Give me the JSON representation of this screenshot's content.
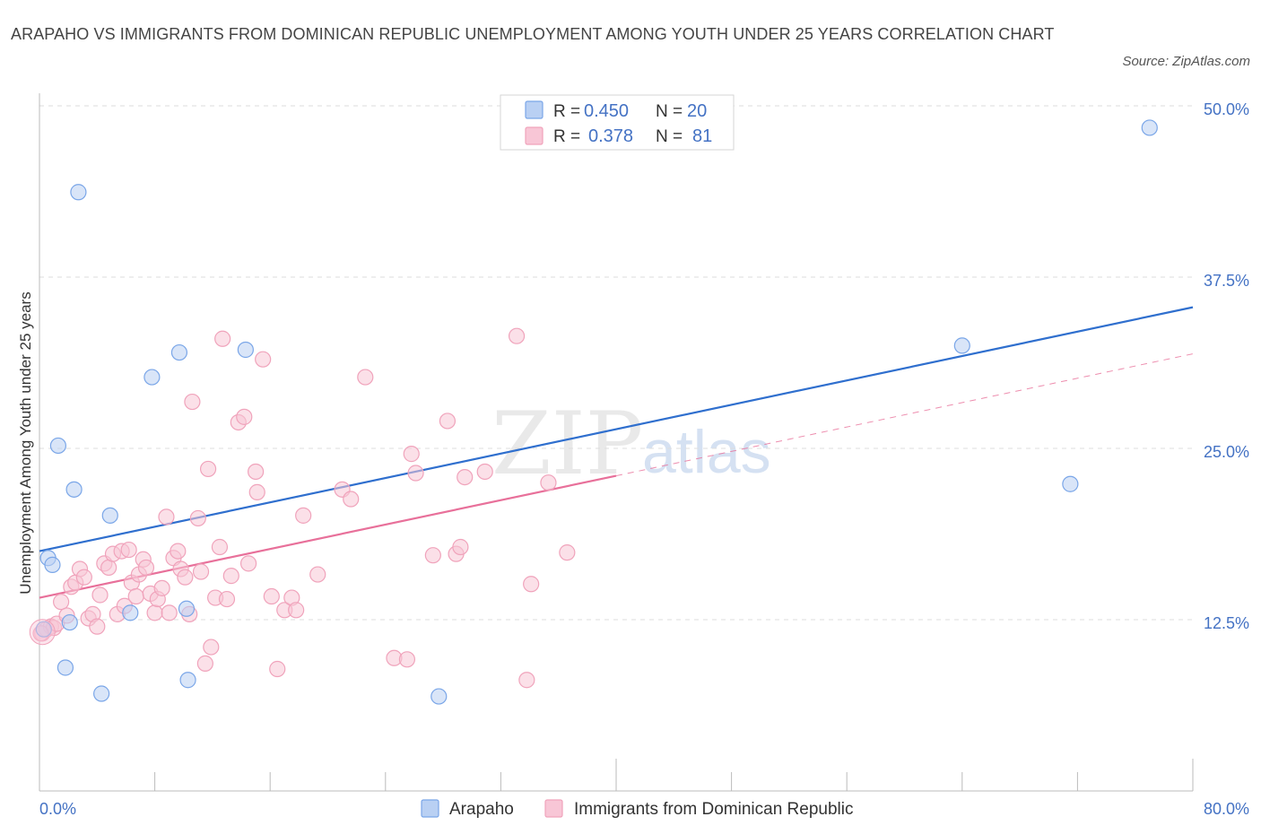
{
  "title": "ARAPAHO VS IMMIGRANTS FROM DOMINICAN REPUBLIC UNEMPLOYMENT AMONG YOUTH UNDER 25 YEARS CORRELATION CHART",
  "source": "Source: ZipAtlas.com",
  "watermark": {
    "zip": "ZIP",
    "atlas": "atlas"
  },
  "legend": {
    "rows": [
      {
        "r_label": "R =",
        "r_value": "0.450",
        "n_label": "N =",
        "n_value": "20"
      },
      {
        "r_label": "R =",
        "r_value": "0.378",
        "n_label": "N =",
        "n_value": "81"
      }
    ]
  },
  "chart_data": {
    "type": "scatter",
    "title": "ARAPAHO VS IMMIGRANTS FROM DOMINICAN REPUBLIC UNEMPLOYMENT AMONG YOUTH UNDER 25 YEARS CORRELATION CHART",
    "xlabel": "",
    "ylabel": "Unemployment Among Youth under 25 years",
    "xlim": [
      0,
      80
    ],
    "ylim": [
      0,
      50
    ],
    "x_tick_labels": [
      {
        "value": 0,
        "label": "0.0%"
      },
      {
        "value": 80,
        "label": "80.0%"
      }
    ],
    "y_tick_labels": [
      {
        "value": 12.5,
        "label": "12.5%"
      },
      {
        "value": 25,
        "label": "25.0%"
      },
      {
        "value": 37.5,
        "label": "37.5%"
      },
      {
        "value": 50,
        "label": "50.0%"
      }
    ],
    "series": [
      {
        "name": "Arapaho",
        "color": "#7aa6e8",
        "fill": "#b9d0f3",
        "line_color": "#2f6fce",
        "r": 0.45,
        "n": 20,
        "trend": {
          "x0": 0,
          "y0": 17.5,
          "x1": 80,
          "y1": 35.3,
          "dashed_from": null
        },
        "points": [
          [
            0.3,
            11.8
          ],
          [
            0.6,
            17.0
          ],
          [
            0.9,
            16.5
          ],
          [
            1.3,
            25.2
          ],
          [
            1.8,
            9.0
          ],
          [
            2.1,
            12.3
          ],
          [
            2.4,
            22.0
          ],
          [
            2.7,
            43.7
          ],
          [
            4.3,
            7.1
          ],
          [
            4.9,
            20.1
          ],
          [
            6.3,
            13.0
          ],
          [
            7.8,
            30.2
          ],
          [
            9.7,
            32.0
          ],
          [
            10.2,
            13.3
          ],
          [
            10.3,
            8.1
          ],
          [
            14.3,
            32.2
          ],
          [
            27.7,
            6.9
          ],
          [
            64.0,
            32.5
          ],
          [
            71.5,
            22.4
          ],
          [
            77.0,
            48.4
          ]
        ]
      },
      {
        "name": "Immigrants from Dominican Republic",
        "color": "#f0a3bb",
        "fill": "#f8c6d6",
        "line_color": "#e8709a",
        "r": 0.378,
        "n": 81,
        "trend": {
          "x0": 0,
          "y0": 14.1,
          "x1": 80,
          "y1": 31.9,
          "dashed_from": 40
        },
        "points": [
          [
            0.2,
            11.5
          ],
          [
            0.5,
            11.8
          ],
          [
            0.8,
            12.0
          ],
          [
            1.0,
            11.9
          ],
          [
            1.2,
            12.2
          ],
          [
            1.5,
            13.8
          ],
          [
            1.9,
            12.8
          ],
          [
            2.2,
            14.9
          ],
          [
            2.5,
            15.2
          ],
          [
            2.8,
            16.2
          ],
          [
            3.1,
            15.6
          ],
          [
            3.4,
            12.6
          ],
          [
            3.7,
            12.9
          ],
          [
            4.0,
            12.0
          ],
          [
            4.2,
            14.3
          ],
          [
            4.5,
            16.6
          ],
          [
            4.8,
            16.3
          ],
          [
            5.1,
            17.3
          ],
          [
            5.4,
            12.9
          ],
          [
            5.7,
            17.5
          ],
          [
            5.9,
            13.5
          ],
          [
            6.2,
            17.6
          ],
          [
            6.4,
            15.2
          ],
          [
            6.7,
            14.2
          ],
          [
            6.9,
            15.8
          ],
          [
            7.2,
            16.9
          ],
          [
            7.4,
            16.3
          ],
          [
            7.7,
            14.4
          ],
          [
            8.0,
            13.0
          ],
          [
            8.2,
            14.0
          ],
          [
            8.5,
            14.8
          ],
          [
            8.8,
            20.0
          ],
          [
            9.0,
            13.0
          ],
          [
            9.3,
            17.0
          ],
          [
            9.6,
            17.5
          ],
          [
            9.8,
            16.2
          ],
          [
            10.1,
            15.6
          ],
          [
            10.4,
            12.9
          ],
          [
            10.6,
            28.4
          ],
          [
            11.0,
            19.9
          ],
          [
            11.2,
            16.0
          ],
          [
            11.5,
            9.3
          ],
          [
            11.7,
            23.5
          ],
          [
            11.9,
            10.5
          ],
          [
            12.2,
            14.1
          ],
          [
            12.5,
            17.8
          ],
          [
            12.7,
            33.0
          ],
          [
            13.0,
            14.0
          ],
          [
            13.3,
            15.7
          ],
          [
            13.8,
            26.9
          ],
          [
            14.2,
            27.3
          ],
          [
            14.5,
            16.6
          ],
          [
            15.0,
            23.3
          ],
          [
            15.1,
            21.8
          ],
          [
            15.5,
            31.5
          ],
          [
            16.1,
            14.2
          ],
          [
            16.5,
            8.9
          ],
          [
            17.0,
            13.2
          ],
          [
            17.5,
            14.1
          ],
          [
            17.8,
            13.2
          ],
          [
            18.3,
            20.1
          ],
          [
            19.3,
            15.8
          ],
          [
            21.0,
            22.0
          ],
          [
            21.6,
            21.3
          ],
          [
            22.6,
            30.2
          ],
          [
            24.6,
            9.7
          ],
          [
            25.5,
            9.6
          ],
          [
            25.8,
            24.6
          ],
          [
            26.1,
            23.2
          ],
          [
            27.3,
            17.2
          ],
          [
            28.3,
            27.0
          ],
          [
            28.9,
            17.3
          ],
          [
            29.2,
            17.8
          ],
          [
            29.5,
            22.9
          ],
          [
            30.9,
            23.3
          ],
          [
            33.1,
            33.2
          ],
          [
            33.8,
            8.1
          ],
          [
            34.1,
            15.1
          ],
          [
            35.3,
            22.5
          ],
          [
            36.6,
            17.4
          ],
          [
            0.1,
            11.5
          ]
        ]
      }
    ],
    "grid": true,
    "legend_position": "top-center"
  },
  "bottom_legend": [
    {
      "label": "Arapaho"
    },
    {
      "label": "Immigrants from Dominican Republic"
    }
  ]
}
